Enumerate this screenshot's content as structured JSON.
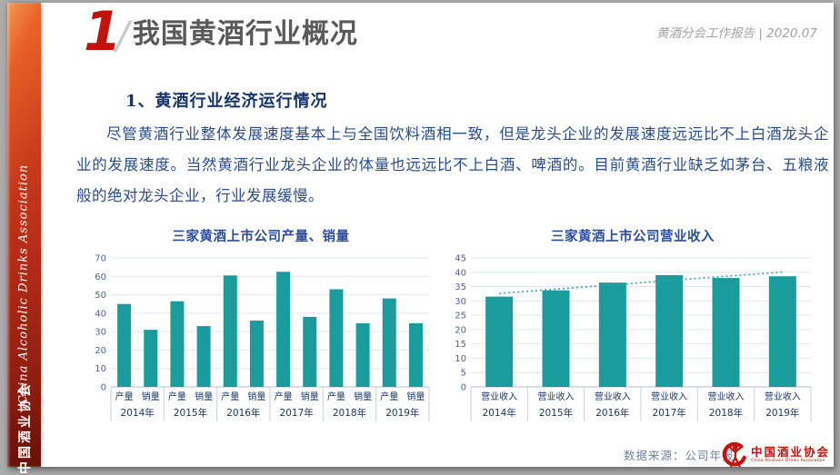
{
  "slide": {
    "header": {
      "number": "1",
      "slash": "/",
      "title": "我国黄酒行业概况",
      "report_label": "黄酒分会工作报告 | 2020.07"
    },
    "sidebar": {
      "org_en": "China Alcoholic Drinks Association",
      "org_zh": "中国酒业协会"
    },
    "section": {
      "subtitle": "1、黄酒行业经济运行情况",
      "paragraph": "尽管黄酒行业整体发展速度基本上与全国饮料酒相一致，但是龙头企业的发展速度远远比不上白酒龙头企业的发展速度。当然黄酒行业龙头企业的体量也远远比不上白酒、啤酒的。目前黄酒行业缺乏如茅台、五粮液般的绝对龙头企业，行业发展缓慢。"
    },
    "footer": {
      "source": "数据来源：公司年报",
      "logo_zh": "中国酒业协会",
      "logo_en": "China Alcoholic Drinks Association"
    }
  },
  "colors": {
    "bar_teal": "#1A9C9C",
    "accent_red": "#C3120B",
    "chart_title_blue": "#2E4C9C",
    "text_navy": "#2A4C8C",
    "axis_label_blue": "#50609A",
    "category_label_navy": "#1B3764"
  },
  "chart_data": [
    {
      "type": "bar",
      "title": "三家黄酒上市公司产量、销量",
      "categories": [
        "2014年",
        "2015年",
        "2016年",
        "2017年",
        "2018年",
        "2019年"
      ],
      "series": [
        {
          "name": "产量",
          "values": [
            45,
            46.5,
            60.5,
            62.5,
            53,
            48
          ]
        },
        {
          "name": "销量",
          "values": [
            31,
            33,
            36,
            38,
            34.5,
            34.5
          ]
        }
      ],
      "xlabel": "",
      "ylabel": "",
      "ylim": [
        0,
        70
      ],
      "ystep": 10,
      "grid": true,
      "legend_position": "none"
    },
    {
      "type": "bar",
      "title": "三家黄酒上市公司营业收入",
      "categories": [
        "2014年",
        "2015年",
        "2016年",
        "2017年",
        "2018年",
        "2019年"
      ],
      "bar_label": "营业收入",
      "values": [
        31.5,
        33.7,
        36.4,
        39,
        38,
        38.6
      ],
      "trendline": {
        "style": "dotted",
        "start": 32.6,
        "end": 40.1
      },
      "xlabel": "",
      "ylabel": "",
      "ylim": [
        0,
        45
      ],
      "ystep": 5,
      "grid": true,
      "legend_position": "none"
    }
  ]
}
